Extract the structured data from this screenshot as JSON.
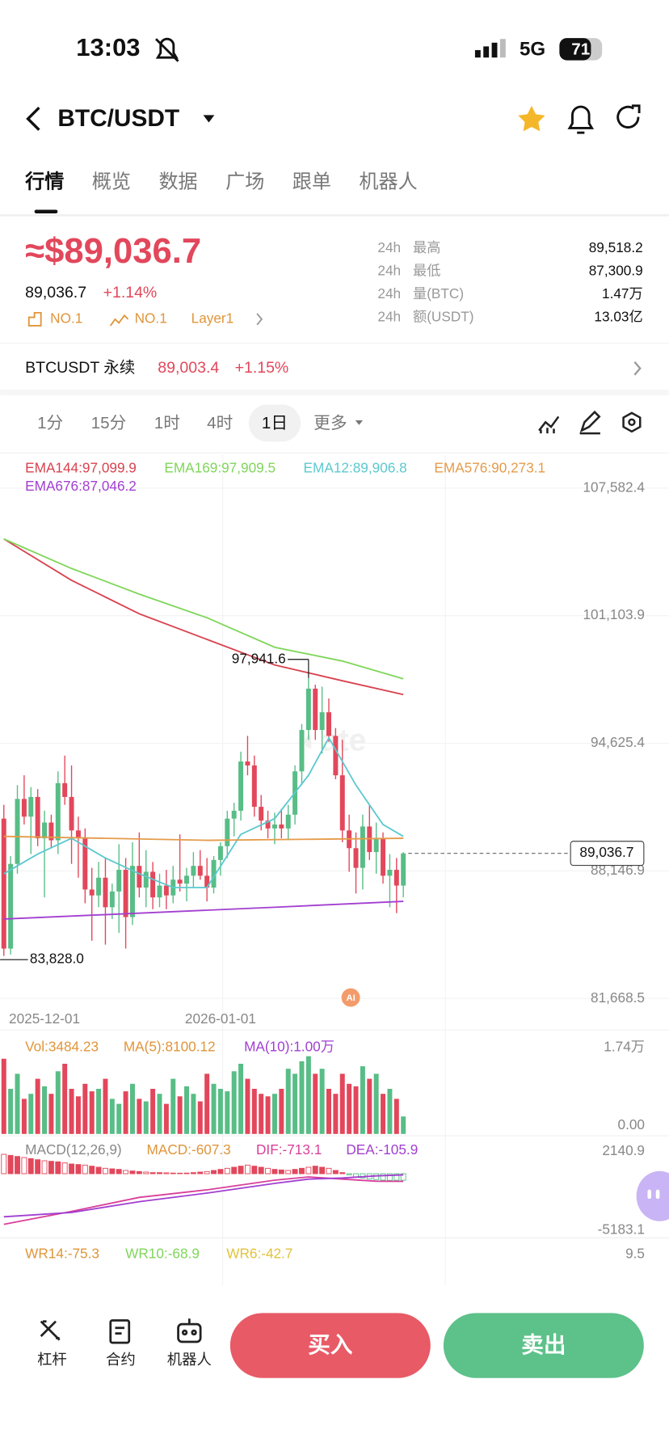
{
  "status": {
    "time": "13:03",
    "network": "5G",
    "battery": "71"
  },
  "header": {
    "pair": "BTC/USDT"
  },
  "tabs": [
    "行情",
    "概览",
    "数据",
    "广场",
    "跟单",
    "机器人"
  ],
  "price": {
    "main": "≈$89,036.7",
    "last": "89,036.7",
    "change": "+1.14%",
    "badges": [
      "NO.1",
      "NO.1",
      "Layer1"
    ]
  },
  "stats": [
    {
      "period": "24h",
      "label": "最高",
      "value": "89,518.2"
    },
    {
      "period": "24h",
      "label": "最低",
      "value": "87,300.9"
    },
    {
      "period": "24h",
      "label": "量(BTC)",
      "value": "1.47万"
    },
    {
      "period": "24h",
      "label": "额(USDT)",
      "value": "13.03亿"
    }
  ],
  "perp": {
    "name": "BTCUSDT 永续",
    "price": "89,003.4",
    "change": "+1.15%"
  },
  "intervals": [
    "1分",
    "15分",
    "1时",
    "4时",
    "1日",
    "更多"
  ],
  "chart": {
    "type": "candlestick",
    "up_color": "#58bd86",
    "down_color": "#e2475b",
    "ylim": [
      81668.5,
      107582.4
    ],
    "yticks": [
      {
        "value": 107582.4,
        "label": "107,582.4"
      },
      {
        "value": 101103.9,
        "label": "101,103.9"
      },
      {
        "value": 94625.4,
        "label": "94,625.4"
      },
      {
        "value": 88146.9,
        "label": "88,146.9"
      },
      {
        "value": 81668.5,
        "label": "81,668.5"
      }
    ],
    "dates": [
      {
        "index": 6,
        "label": "2025-12-01"
      },
      {
        "index": 32,
        "label": "2026-01-01"
      }
    ],
    "current": {
      "value": 89036.7,
      "label": "89,036.7"
    },
    "max": {
      "index": 45,
      "value": 97941.6,
      "label": "97,941.6"
    },
    "min": {
      "index": 0,
      "value": 83828,
      "label": "83,828.0"
    },
    "indicators": [
      {
        "label": "EMA144:97,099.9",
        "color": "#d9424f",
        "x": [
          0,
          10,
          20,
          30,
          40,
          50,
          59
        ],
        "values": [
          105000,
          102900,
          101200,
          99900,
          98600,
          97800,
          97100
        ]
      },
      {
        "label": "EMA169:97,909.5",
        "color": "#7fd65a",
        "x": [
          0,
          10,
          20,
          30,
          40,
          50,
          59
        ],
        "values": [
          105000,
          103500,
          102200,
          101000,
          99500,
          98800,
          97900
        ]
      },
      {
        "label": "EMA12:89,906.8",
        "color": "#5cc9cf",
        "x": [
          0,
          5,
          10,
          15,
          20,
          25,
          30,
          35,
          40,
          45,
          48,
          52,
          56,
          59
        ],
        "values": [
          88000,
          89000,
          89800,
          88800,
          88000,
          87300,
          87300,
          90000,
          90800,
          93000,
          94900,
          92500,
          90500,
          89900
        ]
      },
      {
        "label": "EMA576:90,273.1",
        "color": "#e59b4a",
        "x": [
          0,
          30,
          59
        ],
        "values": [
          89900,
          89700,
          89800
        ]
      },
      {
        "label": "EMA676:87,046.2",
        "color": "#a23fd0",
        "x": [
          0,
          20,
          40,
          59
        ],
        "values": [
          85700,
          86000,
          86300,
          86600
        ]
      }
    ],
    "candles": [
      [
        90800,
        91500,
        83828,
        84200
      ],
      [
        84200,
        88900,
        83900,
        88500
      ],
      [
        88500,
        92500,
        88000,
        91800
      ],
      [
        91800,
        93000,
        90500,
        90900
      ],
      [
        90900,
        92400,
        89000,
        91900
      ],
      [
        91900,
        92300,
        89400,
        89800
      ],
      [
        89800,
        91200,
        86800,
        90600
      ],
      [
        90600,
        91000,
        89300,
        89700
      ],
      [
        89700,
        93200,
        89000,
        92600
      ],
      [
        92600,
        94000,
        91500,
        91900
      ],
      [
        91900,
        93500,
        88500,
        90200
      ],
      [
        90200,
        90900,
        87800,
        89800
      ],
      [
        89800,
        90300,
        86500,
        87200
      ],
      [
        87200,
        88300,
        84600,
        86900
      ],
      [
        86900,
        88600,
        86300,
        87800
      ],
      [
        87800,
        88800,
        84400,
        86300
      ],
      [
        86300,
        87500,
        85700,
        87100
      ],
      [
        87100,
        89500,
        85000,
        88200
      ],
      [
        88200,
        88800,
        84200,
        85800
      ],
      [
        85800,
        89600,
        85400,
        88400
      ],
      [
        88400,
        90100,
        86800,
        87300
      ],
      [
        87300,
        89200,
        86300,
        88100
      ],
      [
        88100,
        88600,
        86200,
        86800
      ],
      [
        86800,
        88000,
        86300,
        87400
      ],
      [
        87400,
        88200,
        86200,
        86900
      ],
      [
        86900,
        88400,
        86500,
        87700
      ],
      [
        87700,
        90000,
        87100,
        87500
      ],
      [
        87500,
        88300,
        86600,
        87900
      ],
      [
        87900,
        89100,
        87300,
        88400
      ],
      [
        88400,
        89200,
        87700,
        87900
      ],
      [
        87900,
        88800,
        86600,
        87300
      ],
      [
        87300,
        88900,
        87000,
        88700
      ],
      [
        88700,
        89600,
        87900,
        89400
      ],
      [
        89400,
        91200,
        88800,
        90800
      ],
      [
        90800,
        91600,
        89900,
        91200
      ],
      [
        91200,
        94200,
        90700,
        93700
      ],
      [
        93700,
        95000,
        93000,
        93500
      ],
      [
        93500,
        94000,
        90900,
        91400
      ],
      [
        91400,
        92000,
        90200,
        90700
      ],
      [
        90700,
        91200,
        89800,
        90300
      ],
      [
        90300,
        91100,
        89500,
        90500
      ],
      [
        90500,
        91300,
        89800,
        90300
      ],
      [
        90300,
        91500,
        89700,
        91000
      ],
      [
        91000,
        93500,
        90500,
        93200
      ],
      [
        93200,
        95600,
        92500,
        95300
      ],
      [
        95300,
        97941.6,
        94800,
        97400
      ],
      [
        97400,
        97600,
        94800,
        95300
      ],
      [
        95300,
        97500,
        94100,
        96200
      ],
      [
        96200,
        96900,
        94700,
        95000
      ],
      [
        95000,
        95400,
        92800,
        93000
      ],
      [
        93000,
        94800,
        89600,
        90200
      ],
      [
        90200,
        91000,
        88100,
        89300
      ],
      [
        89300,
        90100,
        87000,
        88300
      ],
      [
        88300,
        91000,
        87200,
        90400
      ],
      [
        90400,
        91500,
        88700,
        89100
      ],
      [
        89100,
        90600,
        88000,
        89800
      ],
      [
        89800,
        90100,
        87500,
        87900
      ],
      [
        87900,
        89000,
        86300,
        88200
      ],
      [
        88200,
        88800,
        86000,
        87400
      ],
      [
        87400,
        89100,
        86800,
        89036.7
      ]
    ]
  },
  "volume": {
    "labels": [
      {
        "text": "Vol:3484.23",
        "color": "#e0953a"
      },
      {
        "text": "MA(5):8100.12",
        "color": "#e0953a"
      },
      {
        "text": "MA(10):1.00万",
        "color": "#a23fd0"
      }
    ],
    "ylim": [
      0,
      17400
    ],
    "yticks": [
      {
        "value": 17400,
        "label": "1.74万"
      },
      {
        "value": 0,
        "label": "0.00"
      }
    ],
    "values": [
      15000,
      9000,
      12000,
      7000,
      8000,
      11000,
      9500,
      8000,
      12500,
      14000,
      9000,
      7500,
      10000,
      8500,
      9000,
      11000,
      7000,
      6000,
      8500,
      10000,
      7000,
      6500,
      9000,
      8000,
      6000,
      11000,
      7500,
      9500,
      8000,
      6500,
      12000,
      10000,
      9000,
      8500,
      12500,
      14000,
      11000,
      9000,
      8000,
      7500,
      8000,
      9000,
      13000,
      12000,
      14500,
      15500,
      12000,
      13000,
      9000,
      8000,
      12000,
      10000,
      9500,
      13500,
      11000,
      12000,
      8000,
      9000,
      7000,
      3484.23
    ]
  },
  "macd": {
    "labels": [
      {
        "text": "MACD(12,26,9)",
        "color": "#888888"
      },
      {
        "text": "MACD:-607.3",
        "color": "#e0953a"
      },
      {
        "text": "DIF:-713.1",
        "color": "#d9409a"
      },
      {
        "text": "DEA:-105.9",
        "color": "#a23fd0"
      }
    ],
    "ylim": [
      -5183.1,
      2140.9
    ],
    "yticks": [
      2140.9,
      -5183.1
    ],
    "hist": [
      1800,
      1700,
      1600,
      1500,
      1400,
      1300,
      1200,
      1150,
      1100,
      1000,
      900,
      850,
      800,
      700,
      600,
      500,
      450,
      400,
      300,
      250,
      200,
      150,
      100,
      100,
      80,
      60,
      50,
      60,
      100,
      150,
      200,
      300,
      400,
      500,
      600,
      700,
      800,
      700,
      600,
      500,
      400,
      350,
      300,
      400,
      500,
      600,
      700,
      600,
      500,
      300,
      100,
      -100,
      -300,
      -400,
      -500,
      -550,
      -600,
      -620,
      -610,
      -607.3
    ],
    "lines": [
      {
        "name": "DIF",
        "color": "#d9409a",
        "x": [
          0,
          10,
          20,
          30,
          40,
          45,
          50,
          55,
          59
        ],
        "values": [
          -4700,
          -3500,
          -2200,
          -1500,
          -600,
          -300,
          -500,
          -700,
          -713.1
        ]
      },
      {
        "name": "DEA",
        "color": "#a23fd0",
        "x": [
          0,
          10,
          20,
          30,
          40,
          45,
          50,
          55,
          59
        ],
        "values": [
          -4000,
          -3600,
          -2600,
          -1800,
          -900,
          -500,
          -400,
          -200,
          -105.9
        ]
      }
    ]
  },
  "wr": {
    "labels": [
      {
        "text": "WR14:-75.3",
        "color": "#e0953a"
      },
      {
        "text": "WR10:-68.9",
        "color": "#7fd65a"
      },
      {
        "text": "WR6:-42.7",
        "color": "#e2c23a"
      }
    ],
    "ytop": 9.5
  },
  "bottom": {
    "tools": [
      "杠杆",
      "合约",
      "机器人"
    ],
    "buy": "买入",
    "sell": "卖出"
  }
}
